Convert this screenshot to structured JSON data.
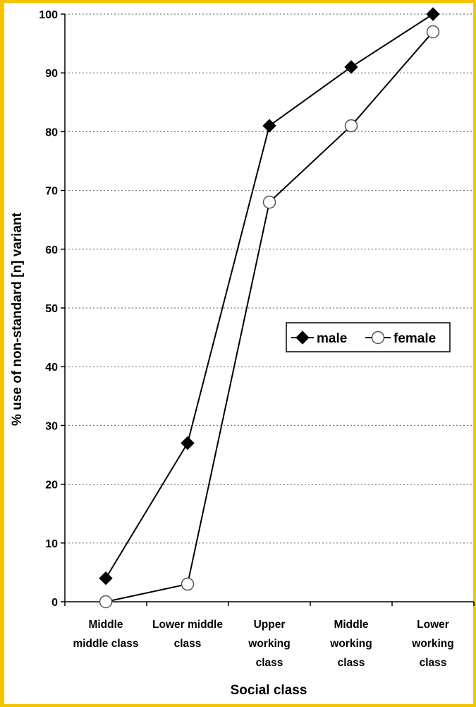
{
  "chart_data": {
    "type": "line",
    "categories": [
      [
        "Middle",
        "middle class"
      ],
      [
        "Lower middle",
        "class"
      ],
      [
        "Upper",
        "working",
        "class"
      ],
      [
        "Middle",
        "working",
        "class"
      ],
      [
        "Lower",
        "working",
        "class"
      ]
    ],
    "series": [
      {
        "name": "male",
        "values": [
          4,
          27,
          81,
          91,
          100
        ],
        "marker": "filled-diamond",
        "color": "#000000"
      },
      {
        "name": "female",
        "values": [
          0,
          3,
          68,
          81,
          97
        ],
        "marker": "open-circle",
        "color": "#000000"
      }
    ],
    "title": "",
    "xlabel": "Social class",
    "ylabel": "% use of non-standard [n] variant",
    "ylim": [
      0,
      100
    ],
    "yticks": [
      0,
      10,
      20,
      30,
      40,
      50,
      60,
      70,
      80,
      90,
      100
    ],
    "grid": "horizontal dotted",
    "legend": "right-middle",
    "frame_color": "#f5c400"
  }
}
